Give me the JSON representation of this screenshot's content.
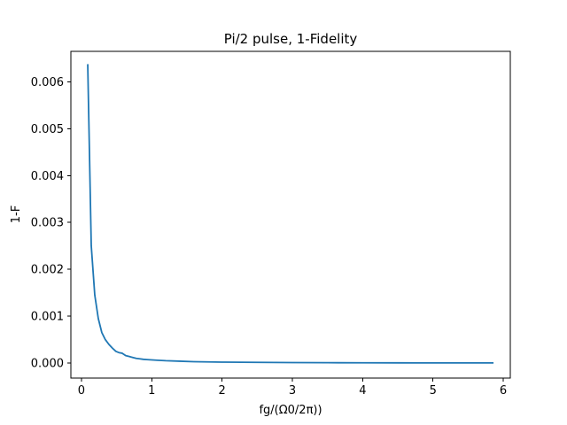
{
  "chart_data": {
    "type": "line",
    "title": "Pi/2 pulse, 1-Fidelity",
    "xlabel": "fg/(Ω0/2π))",
    "ylabel": "1-F",
    "xlim": [
      -0.15,
      6.1
    ],
    "ylim": [
      -0.00032,
      0.00665
    ],
    "xticks": [
      0,
      1,
      2,
      3,
      4,
      5,
      6
    ],
    "xtick_labels": [
      "0",
      "1",
      "2",
      "3",
      "4",
      "5",
      "6"
    ],
    "yticks": [
      0.0,
      0.001,
      0.002,
      0.003,
      0.004,
      0.005,
      0.006
    ],
    "ytick_labels": [
      "0.000",
      "0.001",
      "0.002",
      "0.003",
      "0.004",
      "0.005",
      "0.006"
    ],
    "grid": false,
    "series": [
      {
        "color": "#1f77b4",
        "x": [
          0.09,
          0.14,
          0.19,
          0.24,
          0.29,
          0.34,
          0.39,
          0.44,
          0.49,
          0.54,
          0.58,
          0.63,
          0.68,
          0.73,
          0.78,
          0.83,
          0.88,
          0.93,
          0.98,
          1.03,
          1.08,
          1.2,
          1.4,
          1.6,
          1.8,
          2.0,
          2.5,
          3.0,
          3.5,
          4.0,
          4.5,
          5.0,
          5.5,
          5.85
        ],
        "y": [
          0.00636,
          0.0025,
          0.00145,
          0.00095,
          0.00065,
          0.0005,
          0.0004,
          0.00032,
          0.00025,
          0.00022,
          0.00021,
          0.00016,
          0.00014,
          0.00012,
          0.0001,
          9e-05,
          8e-05,
          7.5e-05,
          7e-05,
          6.5e-05,
          6e-05,
          5e-05,
          4e-05,
          3e-05,
          2.5e-05,
          2e-05,
          1.5e-05,
          1e-05,
          8e-06,
          6e-06,
          5e-06,
          4e-06,
          3e-06,
          3e-06
        ]
      }
    ]
  }
}
